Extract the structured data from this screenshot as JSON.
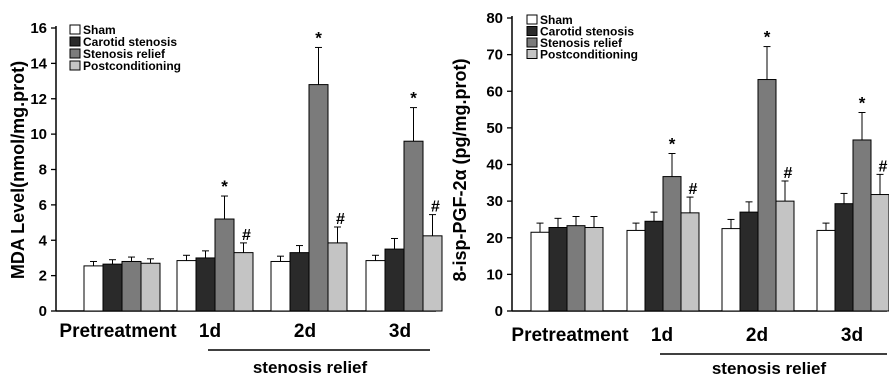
{
  "chart_data": [
    {
      "type": "bar",
      "title": "",
      "xlabel": "",
      "ylabel": "MDA Level(nmol/mg.prot)",
      "ylim": [
        0,
        16
      ],
      "yticks": [
        0,
        2,
        4,
        6,
        8,
        10,
        12,
        14,
        16
      ],
      "categories": [
        "Pretreatment",
        "1d",
        "2d",
        "3d"
      ],
      "group_label": "stenosis relief",
      "legend_position": "top-left",
      "series": [
        {
          "name": "Sham",
          "color": "#ffffff",
          "values": [
            2.55,
            2.85,
            2.8,
            2.85
          ],
          "errors": [
            0.25,
            0.3,
            0.3,
            0.3
          ],
          "marks": [
            "",
            "",
            "",
            ""
          ]
        },
        {
          "name": "Carotid stenosis",
          "color": "#2a2a2a",
          "values": [
            2.65,
            3.0,
            3.3,
            3.5
          ],
          "errors": [
            0.25,
            0.4,
            0.4,
            0.6
          ],
          "marks": [
            "",
            "",
            "",
            ""
          ]
        },
        {
          "name": "Stenosis relief",
          "color": "#7b7b7b",
          "values": [
            2.8,
            5.2,
            12.8,
            9.6
          ],
          "errors": [
            0.25,
            1.3,
            2.1,
            1.9
          ],
          "marks": [
            "",
            "*",
            "*",
            "*"
          ]
        },
        {
          "name": "Postconditioning",
          "color": "#c4c4c4",
          "values": [
            2.7,
            3.3,
            3.85,
            4.25
          ],
          "errors": [
            0.25,
            0.55,
            0.9,
            1.2
          ],
          "marks": [
            "",
            "#",
            "#",
            "#"
          ]
        }
      ]
    },
    {
      "type": "bar",
      "title": "",
      "xlabel": "",
      "ylabel": "8-isp-PGF-2α (pg/mg.prot)",
      "ylim": [
        0,
        80
      ],
      "yticks": [
        0,
        10,
        20,
        30,
        40,
        50,
        60,
        70,
        80
      ],
      "categories": [
        "Pretreatment",
        "1d",
        "2d",
        "3d"
      ],
      "group_label": "stenosis relief",
      "legend_position": "top-left",
      "series": [
        {
          "name": "Sham",
          "color": "#ffffff",
          "values": [
            21.5,
            22.0,
            22.5,
            22.0
          ],
          "errors": [
            2.5,
            2.0,
            2.5,
            2.0
          ],
          "marks": [
            "",
            "",
            "",
            ""
          ]
        },
        {
          "name": "Carotid stenosis",
          "color": "#2a2a2a",
          "values": [
            22.8,
            24.5,
            27.0,
            29.3
          ],
          "errors": [
            2.5,
            2.5,
            2.8,
            2.8
          ],
          "marks": [
            "",
            "",
            "",
            ""
          ]
        },
        {
          "name": "Stenosis relief",
          "color": "#7b7b7b",
          "values": [
            23.3,
            36.7,
            63.2,
            46.7
          ],
          "errors": [
            2.5,
            6.3,
            9.0,
            7.5
          ],
          "marks": [
            "",
            "*",
            "*",
            "*"
          ]
        },
        {
          "name": "Postconditioning",
          "color": "#c4c4c4",
          "values": [
            22.8,
            26.8,
            30.0,
            31.8
          ],
          "errors": [
            3.0,
            4.3,
            5.5,
            5.5
          ],
          "marks": [
            "",
            "#",
            "#",
            "#"
          ]
        }
      ]
    }
  ]
}
